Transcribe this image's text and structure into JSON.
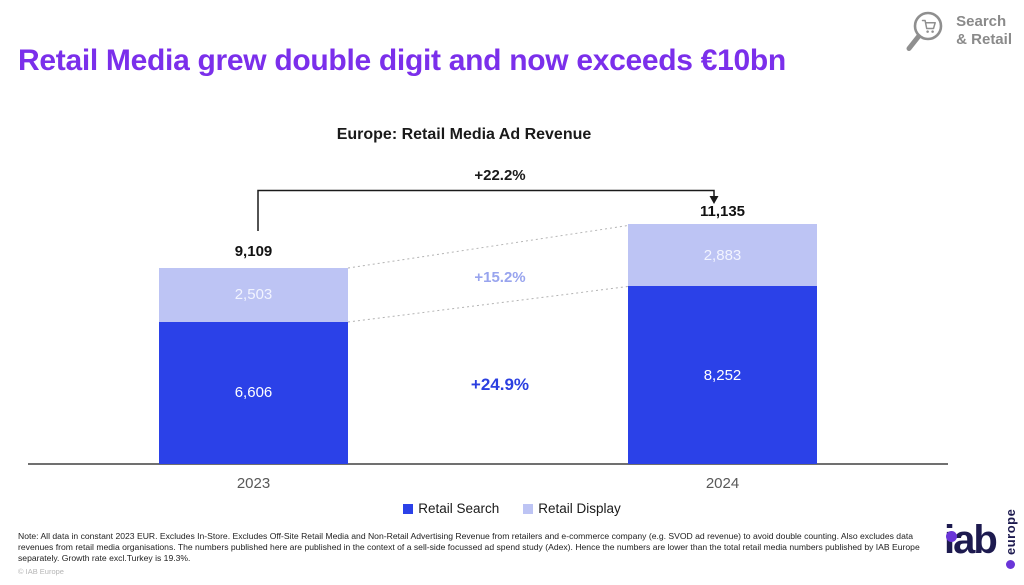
{
  "header": {
    "badge": {
      "line1": "Search",
      "line2": "& Retail",
      "icon": "magnifier-cart-icon",
      "color": "#8A8A8A"
    },
    "title": "Retail Media grew double digit and now exceeds €10bn",
    "title_color": "#7B2FEB"
  },
  "chart_data": {
    "type": "bar",
    "stacked": true,
    "title": "Europe: Retail Media Ad Revenue",
    "categories": [
      "2023",
      "2024"
    ],
    "series": [
      {
        "name": "Retail Search",
        "color": "#2B41E8",
        "values": [
          6606,
          8252
        ],
        "value_labels": [
          "6,606",
          "8,252"
        ]
      },
      {
        "name": "Retail Display",
        "color": "#BDC4F4",
        "values": [
          2503,
          2883
        ],
        "value_labels": [
          "2,503",
          "2,883"
        ]
      }
    ],
    "totals": [
      9109,
      11135
    ],
    "total_labels": [
      "9,109",
      "11,135"
    ],
    "growth_labels": {
      "total": "+22.2%",
      "retail_display": "+15.2%",
      "retail_search": "+24.9%"
    },
    "growth_label_colors": {
      "retail_display": "#98A4EE",
      "retail_search": "#2B3FE0"
    },
    "legend_position": "bottom",
    "grid": false,
    "baseline_axis": true
  },
  "footnote": "Note: All data in constant 2023 EUR. Excludes In-Store. Excludes Off-Site Retail Media and Non-Retail Advertising Revenue from retailers and e-commerce company (e.g. SVOD ad revenue) to avoid double counting. Also excludes data revenues from retail media organisations. The numbers published here are published in the context of a sell-side focussed ad spend study (Adex). Hence the numbers are lower than the total retail media numbers published by IAB Europe separately. Growth rate excl.Turkey is 19.3%.",
  "copyright": "© IAB Europe",
  "logo": {
    "text": "iab",
    "sub": "europe"
  }
}
